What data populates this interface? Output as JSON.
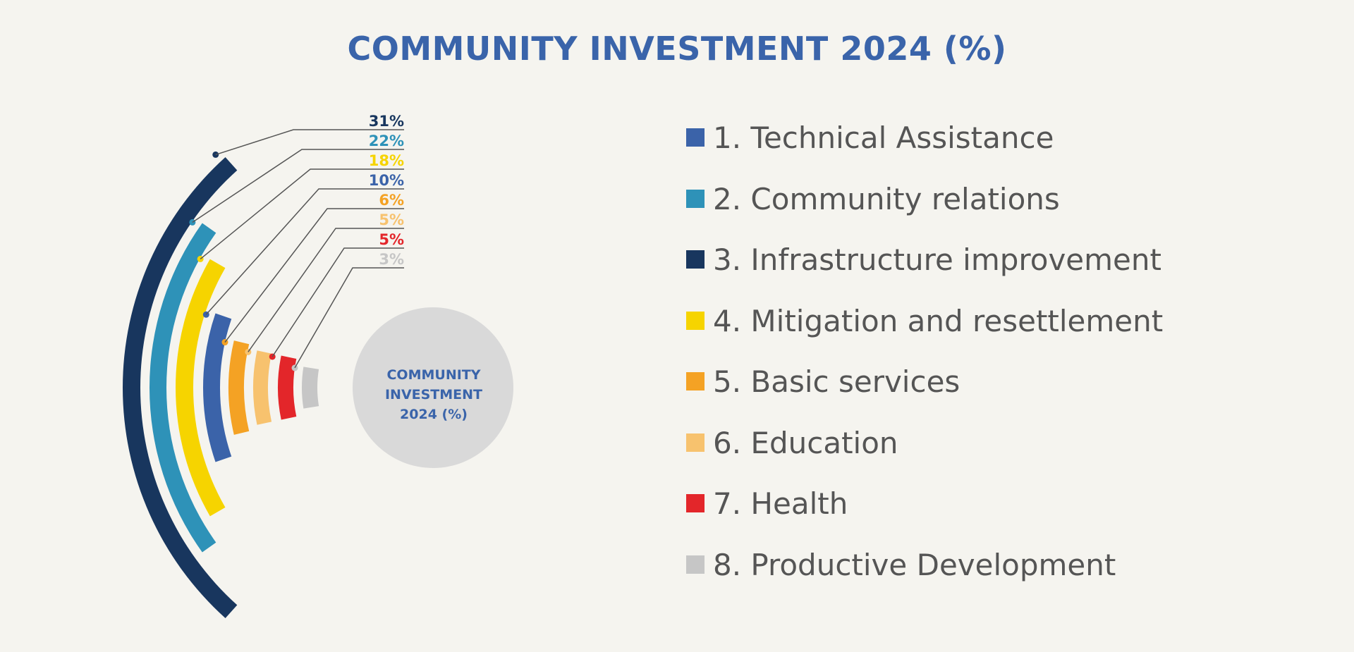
{
  "title": "COMMUNITY INVESTMENT 2024 (%)",
  "center_label": [
    "COMMUNITY",
    "INVESTMENT",
    "2024 (%)"
  ],
  "chart_data": {
    "type": "radial-bar",
    "title": "COMMUNITY INVESTMENT 2024 (%)",
    "unit": "%",
    "series": [
      {
        "value": 31,
        "label": "31%",
        "color": "#18365e",
        "category_index": 3
      },
      {
        "value": 22,
        "label": "22%",
        "color": "#2e92b8",
        "category_index": 2
      },
      {
        "value": 18,
        "label": "18%",
        "color": "#f6d400",
        "category_index": 4
      },
      {
        "value": 10,
        "label": "10%",
        "color": "#3b63a9",
        "category_index": 1
      },
      {
        "value": 6,
        "label": "6%",
        "color": "#f4a224",
        "category_index": 5
      },
      {
        "value": 5,
        "label": "5%",
        "color": "#f7c26e",
        "category_index": 6
      },
      {
        "value": 5,
        "label": "5%",
        "color": "#e3262a",
        "category_index": 7
      },
      {
        "value": 3,
        "label": "3%",
        "color": "#c6c6c6",
        "category_index": 8
      }
    ],
    "legend": [
      {
        "label": "1. Technical Assistance",
        "color": "#3b63a9"
      },
      {
        "label": "2. Community relations",
        "color": "#2e92b8"
      },
      {
        "label": "3. Infrastructure improvement",
        "color": "#18365e"
      },
      {
        "label": "4. Mitigation and resettlement",
        "color": "#f6d400"
      },
      {
        "label": "5. Basic services",
        "color": "#f4a224"
      },
      {
        "label": "6. Education",
        "color": "#f7c26e"
      },
      {
        "label": "7. Health",
        "color": "#e3262a"
      },
      {
        "label": "8. Productive Development",
        "color": "#c6c6c6"
      }
    ],
    "legend_position": "right"
  }
}
